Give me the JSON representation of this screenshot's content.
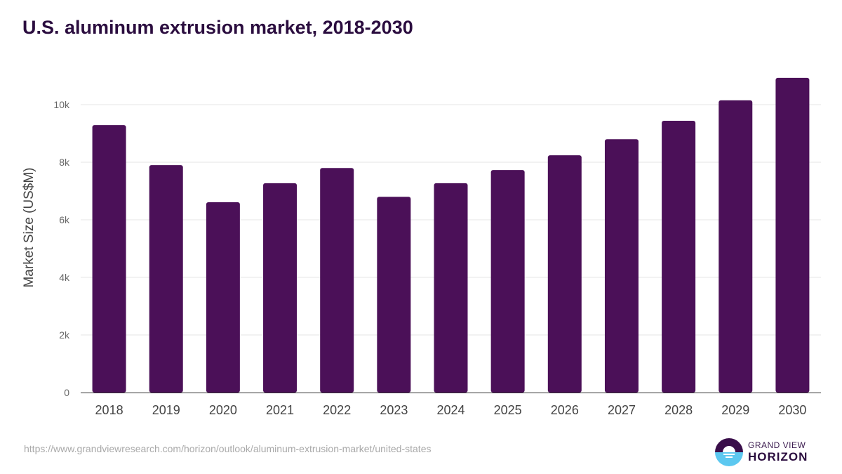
{
  "chart_data": {
    "type": "bar",
    "title": "U.S. aluminum extrusion market, 2018-2030",
    "xlabel": "",
    "ylabel": "Market Size (US$M)",
    "categories": [
      "2018",
      "2019",
      "2020",
      "2021",
      "2022",
      "2023",
      "2024",
      "2025",
      "2026",
      "2027",
      "2028",
      "2029",
      "2030"
    ],
    "values": [
      9290,
      7900,
      6610,
      7270,
      7800,
      6800,
      7270,
      7730,
      8240,
      8800,
      9440,
      10150,
      10930
    ],
    "ylim": [
      0,
      12000
    ],
    "yticks": [
      0,
      2000,
      4000,
      6000,
      8000,
      10000
    ],
    "ytick_labels": [
      "0",
      "2k",
      "4k",
      "6k",
      "8k",
      "10k"
    ],
    "grid": true,
    "bar_color": "#4b1058"
  },
  "source": "https://www.grandviewresearch.com/horizon/outlook/aluminum-extrusion-market/united-states",
  "logo": {
    "line1": "GRAND VIEW",
    "line2": "HORIZON"
  }
}
